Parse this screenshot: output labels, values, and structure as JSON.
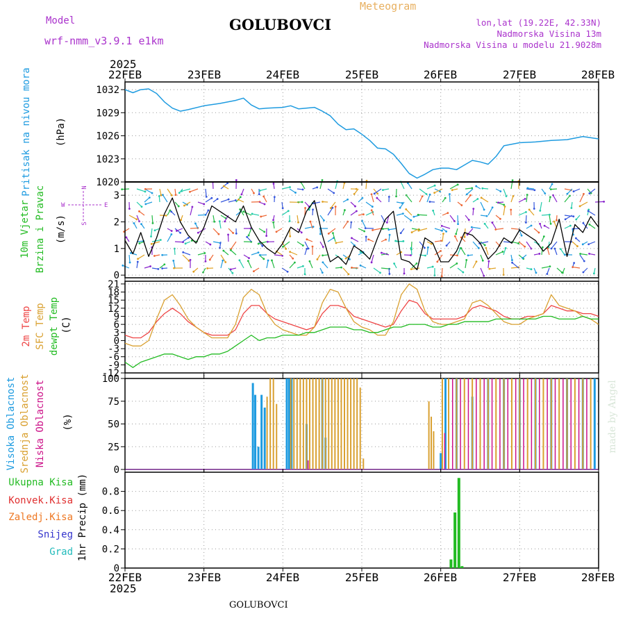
{
  "header": {
    "model_label": "Model",
    "model_value": "wrf-nmm_v3.9.1  e1km",
    "station": "GOLUBOVCI",
    "product": "Meteogram",
    "coords": "lon,lat (19.22E, 42.33N)",
    "elevation": "Nadmorska Visina 13m",
    "model_elevation": "Nadmorska Visina u modelu 21.9028m",
    "footer_station": "GOLUBOVCI",
    "credit": "made by Angel"
  },
  "time_axis": {
    "year": "2025",
    "ticks": [
      "22FEB",
      "23FEB",
      "24FEB",
      "25FEB",
      "26FEB",
      "27FEB",
      "28FEB"
    ]
  },
  "colors": {
    "pressure": "#1e9be0",
    "wind_speed": "#000000",
    "gust_marker": "#e03030",
    "temp_2m": "#ee4444",
    "temp_sfc": "#d9a030",
    "dewpoint": "#22bb22",
    "cloud_high": "#1e9be0",
    "cloud_mid": "#d9a030",
    "cloud_low": "#cc1188",
    "precip_total": "#22bb22",
    "wind_vector_label": "#aa33cc"
  },
  "chart_data": [
    {
      "type": "line",
      "name": "pressure",
      "ylabel": "Pritisak na nivou mora",
      "unit": "(hPa)",
      "ylim": [
        1020,
        1033
      ],
      "yticks": [
        1020,
        1023,
        1026,
        1029,
        1032
      ],
      "x": [
        0,
        0.1,
        0.2,
        0.3,
        0.4,
        0.5,
        0.6,
        0.7,
        0.8,
        1.0,
        1.2,
        1.4,
        1.5,
        1.6,
        1.7,
        1.8,
        2.0,
        2.1,
        2.2,
        2.4,
        2.5,
        2.6,
        2.7,
        2.8,
        2.9,
        3.0,
        3.1,
        3.2,
        3.3,
        3.4,
        3.5,
        3.6,
        3.7,
        3.8,
        3.9,
        4.0,
        4.1,
        4.2,
        4.3,
        4.4,
        4.5,
        4.6,
        4.7,
        4.8,
        5.0,
        5.2,
        5.4,
        5.6,
        5.8,
        6.0
      ],
      "values": [
        1032.0,
        1031.6,
        1032.0,
        1032.1,
        1031.5,
        1030.4,
        1029.6,
        1029.2,
        1029.4,
        1029.9,
        1030.2,
        1030.6,
        1030.9,
        1030.0,
        1029.5,
        1029.6,
        1029.7,
        1029.9,
        1029.5,
        1029.7,
        1029.2,
        1028.6,
        1027.5,
        1026.8,
        1026.9,
        1026.2,
        1025.4,
        1024.4,
        1024.3,
        1023.6,
        1022.4,
        1021.1,
        1020.5,
        1021.0,
        1021.6,
        1021.8,
        1021.8,
        1021.6,
        1022.2,
        1022.8,
        1022.6,
        1022.3,
        1023.3,
        1024.7,
        1025.1,
        1025.2,
        1025.4,
        1025.5,
        1025.9,
        1025.6
      ]
    },
    {
      "type": "line",
      "name": "wind",
      "ylabel_1": "10m Vjetar",
      "ylabel_2": "Brzina i Pravac",
      "unit": "(m/s)",
      "compass": {
        "n": "N",
        "s": "S",
        "e": "E",
        "w": "W"
      },
      "ylim": [
        -0.1,
        3.5
      ],
      "yticks": [
        0,
        1,
        2,
        3
      ],
      "x": [
        0,
        0.1,
        0.2,
        0.3,
        0.4,
        0.5,
        0.6,
        0.7,
        0.8,
        0.9,
        1.0,
        1.1,
        1.2,
        1.3,
        1.4,
        1.5,
        1.6,
        1.7,
        1.8,
        1.9,
        2.0,
        2.1,
        2.2,
        2.3,
        2.4,
        2.5,
        2.6,
        2.7,
        2.8,
        2.9,
        3.0,
        3.1,
        3.2,
        3.3,
        3.4,
        3.5,
        3.6,
        3.7,
        3.8,
        3.9,
        4.0,
        4.1,
        4.2,
        4.3,
        4.4,
        4.5,
        4.6,
        4.7,
        4.8,
        4.9,
        5.0,
        5.1,
        5.2,
        5.3,
        5.4,
        5.5,
        5.6,
        5.7,
        5.8,
        5.9,
        6.0
      ],
      "values": [
        1.3,
        0.8,
        1.6,
        0.7,
        1.4,
        2.3,
        2.9,
        2.0,
        1.5,
        1.2,
        1.8,
        2.6,
        2.4,
        2.2,
        2.0,
        2.6,
        1.8,
        1.3,
        1.0,
        0.8,
        1.2,
        1.8,
        1.6,
        2.4,
        2.8,
        1.5,
        0.5,
        0.7,
        0.4,
        1.1,
        0.9,
        0.6,
        1.4,
        2.1,
        2.4,
        0.6,
        0.5,
        0.2,
        1.4,
        1.2,
        0.5,
        0.5,
        0.9,
        1.6,
        1.5,
        1.2,
        0.6,
        0.9,
        1.4,
        1.2,
        1.7,
        1.5,
        1.3,
        0.9,
        1.2,
        2.1,
        0.7,
        1.9,
        1.6,
        2.2,
        1.8
      ]
    },
    {
      "type": "line",
      "name": "temperature",
      "ylabel_1": "2m Temp",
      "ylabel_2": "SFC Temp",
      "ylabel_3": "dewpt Temp",
      "unit": "(C)",
      "ylim": [
        -12,
        22
      ],
      "yticks": [
        -12,
        -9,
        -6,
        -3,
        0,
        3,
        6,
        9,
        12,
        15,
        18,
        21
      ],
      "x": [
        0,
        0.1,
        0.2,
        0.3,
        0.4,
        0.5,
        0.6,
        0.7,
        0.8,
        0.9,
        1.0,
        1.1,
        1.2,
        1.3,
        1.4,
        1.5,
        1.6,
        1.7,
        1.8,
        1.9,
        2.0,
        2.1,
        2.2,
        2.3,
        2.4,
        2.5,
        2.6,
        2.7,
        2.8,
        2.9,
        3.0,
        3.1,
        3.2,
        3.3,
        3.4,
        3.5,
        3.6,
        3.7,
        3.8,
        3.9,
        4.0,
        4.1,
        4.2,
        4.3,
        4.4,
        4.5,
        4.6,
        4.7,
        4.8,
        4.9,
        5.0,
        5.1,
        5.2,
        5.3,
        5.4,
        5.5,
        5.6,
        5.7,
        5.8,
        5.9,
        6.0
      ],
      "series": [
        {
          "name": "2m Temp",
          "values": [
            2,
            1,
            1,
            3,
            7,
            10,
            12,
            10,
            7,
            5,
            3,
            2,
            2,
            2,
            4,
            10,
            13,
            13,
            10,
            8,
            7,
            6,
            5,
            4,
            5,
            10,
            13,
            13,
            12,
            9,
            8,
            7,
            6,
            5,
            6,
            11,
            15,
            14,
            10,
            8,
            8,
            8,
            8,
            9,
            12,
            13,
            12,
            11,
            9,
            8,
            8,
            9,
            9,
            10,
            13,
            12,
            11,
            11,
            10,
            10,
            9
          ]
        },
        {
          "name": "SFC Temp",
          "values": [
            -1,
            -2,
            -2,
            0,
            8,
            15,
            17,
            13,
            8,
            5,
            3,
            1,
            1,
            1,
            6,
            16,
            19,
            17,
            10,
            6,
            4,
            3,
            2,
            2,
            5,
            14,
            19,
            18,
            12,
            7,
            5,
            4,
            2,
            2,
            7,
            17,
            21,
            19,
            11,
            7,
            6,
            6,
            7,
            8,
            14,
            15,
            13,
            10,
            7,
            6,
            6,
            8,
            9,
            10,
            17,
            13,
            12,
            11,
            9,
            8,
            6
          ]
        },
        {
          "name": "dewpt Temp",
          "values": [
            -8,
            -10,
            -8,
            -7,
            -6,
            -5,
            -5,
            -6,
            -7,
            -6,
            -6,
            -5,
            -5,
            -4,
            -2,
            0,
            2,
            0,
            1,
            1,
            2,
            2,
            2,
            3,
            3,
            4,
            5,
            5,
            5,
            4,
            4,
            3,
            3,
            4,
            5,
            5,
            6,
            6,
            6,
            5,
            5,
            6,
            6,
            7,
            7,
            7,
            7,
            8,
            8,
            8,
            8,
            8,
            8,
            9,
            9,
            8,
            8,
            8,
            9,
            8,
            8
          ]
        }
      ]
    },
    {
      "type": "bar",
      "name": "cloud",
      "ylabel_1": "Visoka Oblacnost",
      "ylabel_2": "Srednja Oblacnost",
      "ylabel_3": "Niska Oblacnost",
      "unit": "(%)",
      "ylim": [
        0,
        100
      ],
      "yticks": [
        0,
        25,
        50,
        75,
        100
      ],
      "series": [
        {
          "name": "Visoka Oblacnost",
          "x": [
            1.62,
            1.65,
            1.69,
            1.73,
            1.77,
            2.05,
            2.08,
            2.11,
            2.3,
            2.5,
            2.54,
            4.0,
            4.06,
            4.2,
            4.4,
            4.6,
            4.8,
            5.0,
            5.2,
            5.4,
            5.6,
            5.8,
            5.95
          ],
          "values": [
            95,
            82,
            25,
            82,
            68,
            100,
            100,
            100,
            50,
            100,
            35,
            18,
            100,
            100,
            80,
            100,
            100,
            100,
            100,
            100,
            100,
            100,
            100
          ]
        },
        {
          "name": "Srednja Oblacnost",
          "x": [
            1.8,
            1.84,
            1.88,
            1.92,
            2.1,
            2.14,
            2.18,
            2.22,
            2.26,
            2.3,
            2.34,
            2.38,
            2.42,
            2.46,
            2.5,
            2.54,
            2.58,
            2.62,
            2.66,
            2.7,
            2.74,
            2.78,
            2.82,
            2.86,
            2.9,
            2.94,
            2.98,
            3.02,
            3.85,
            3.88,
            3.91,
            4.02,
            4.1,
            4.2,
            4.3,
            4.4,
            4.5,
            4.6,
            4.7,
            4.8,
            4.9,
            5.0,
            5.1,
            5.2,
            5.3,
            5.4,
            5.5,
            5.6,
            5.7,
            5.8,
            5.9
          ],
          "values": [
            80,
            100,
            100,
            72,
            100,
            100,
            100,
            100,
            100,
            100,
            100,
            100,
            100,
            100,
            100,
            100,
            100,
            100,
            100,
            100,
            100,
            100,
            100,
            100,
            100,
            100,
            90,
            12,
            75,
            58,
            42,
            100,
            100,
            100,
            100,
            100,
            100,
            100,
            100,
            100,
            100,
            100,
            100,
            100,
            100,
            100,
            100,
            100,
            100,
            100,
            100
          ]
        },
        {
          "name": "Niska Oblacnost",
          "x": [
            2.32,
            4.05,
            4.15,
            4.25,
            4.35,
            4.45,
            4.55,
            4.65,
            4.75,
            4.85,
            4.95,
            5.05,
            5.15,
            5.25,
            5.35,
            5.45,
            5.55,
            5.65,
            5.75,
            5.85
          ],
          "values": [
            10,
            40,
            100,
            100,
            100,
            100,
            100,
            100,
            100,
            100,
            100,
            100,
            100,
            100,
            100,
            100,
            100,
            100,
            100,
            100
          ]
        }
      ]
    },
    {
      "type": "bar",
      "name": "precip",
      "legend": [
        "Ukupna Kisa",
        "Konvek.Kisa",
        "Zaledj.Kisa",
        "Snijeg",
        "Grad"
      ],
      "ylabel": "1hr Precip (mm)",
      "ylim": [
        0,
        1.0
      ],
      "yticks": [
        0,
        0.2,
        0.4,
        0.6,
        0.8
      ],
      "series": [
        {
          "name": "Ukupna Kisa",
          "x": [
            4.13,
            4.18,
            4.23,
            4.27
          ],
          "values": [
            0.09,
            0.58,
            0.94,
            0.02
          ]
        }
      ]
    }
  ]
}
